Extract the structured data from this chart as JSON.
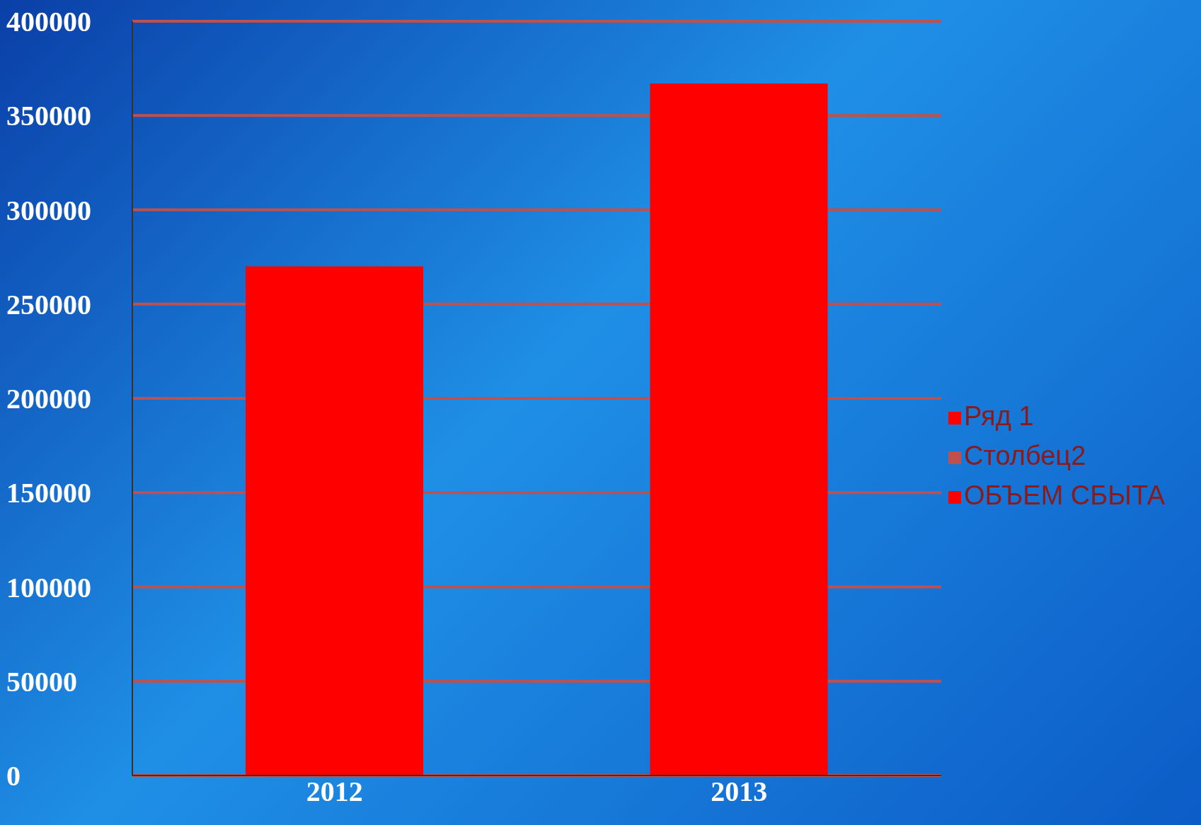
{
  "chart_data": {
    "type": "bar",
    "categories": [
      "2012",
      "2013"
    ],
    "series": [
      {
        "name": "Ряд 1",
        "color": "#ff0000",
        "values": [
          270000,
          367000
        ]
      },
      {
        "name": "Столбец2",
        "color": "#c0504d",
        "values": [
          null,
          null
        ]
      },
      {
        "name": "ОБЪЕМ СБЫТА",
        "color": "#ff0000",
        "values": [
          null,
          null
        ]
      }
    ],
    "ylim": [
      0,
      400000
    ],
    "yticks": [
      0,
      50000,
      100000,
      150000,
      200000,
      250000,
      300000,
      350000,
      400000
    ],
    "grid": "y",
    "legend": "right"
  }
}
